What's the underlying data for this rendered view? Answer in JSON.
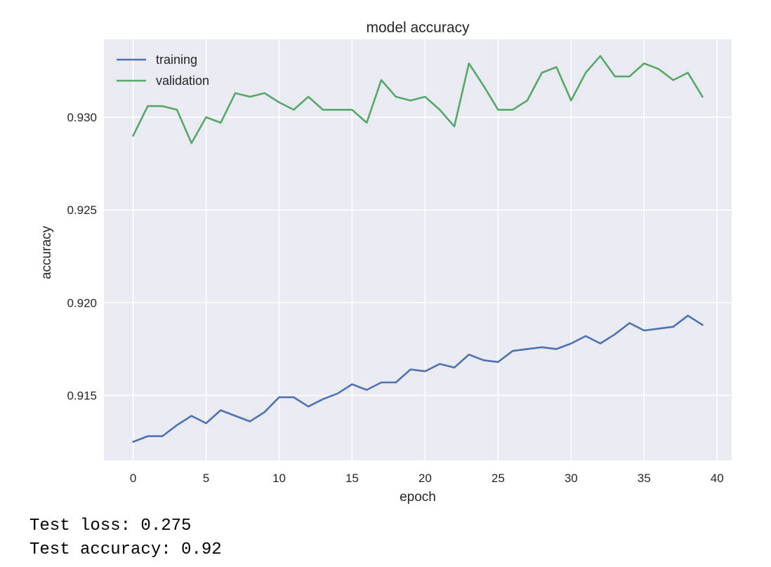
{
  "chart_data": {
    "type": "line",
    "title": "model accuracy",
    "xlabel": "epoch",
    "ylabel": "accuracy",
    "xlim": [
      -2,
      41
    ],
    "ylim": [
      0.9115,
      0.9342
    ],
    "xticks": [
      0,
      5,
      10,
      15,
      20,
      25,
      30,
      35,
      40
    ],
    "xtick_labels": [
      "0",
      "5",
      "10",
      "15",
      "20",
      "25",
      "30",
      "35",
      "40"
    ],
    "yticks": [
      0.915,
      0.92,
      0.925,
      0.93
    ],
    "ytick_labels": [
      "0.915",
      "0.920",
      "0.925",
      "0.930"
    ],
    "grid": true,
    "legend_position": "top-left",
    "style": {
      "background": "#eaeaf2",
      "grid_color": "#ffffff"
    },
    "x": [
      0,
      1,
      2,
      3,
      4,
      5,
      6,
      7,
      8,
      9,
      10,
      11,
      12,
      13,
      14,
      15,
      16,
      17,
      18,
      19,
      20,
      21,
      22,
      23,
      24,
      25,
      26,
      27,
      28,
      29,
      30,
      31,
      32,
      33,
      34,
      35,
      36,
      37,
      38,
      39
    ],
    "series": [
      {
        "name": "training",
        "color": "#4c72b0",
        "values": [
          0.9125,
          0.9128,
          0.9128,
          0.9134,
          0.9139,
          0.9135,
          0.9142,
          0.9139,
          0.9136,
          0.9141,
          0.9149,
          0.9149,
          0.9144,
          0.9148,
          0.9151,
          0.9156,
          0.9153,
          0.9157,
          0.9157,
          0.9164,
          0.9163,
          0.9167,
          0.9165,
          0.9172,
          0.9169,
          0.9168,
          0.9174,
          0.9175,
          0.9176,
          0.9175,
          0.9178,
          0.9182,
          0.9178,
          0.9183,
          0.9189,
          0.9185,
          0.9186,
          0.9187,
          0.9193,
          0.9188
        ]
      },
      {
        "name": "validation",
        "color": "#55a868",
        "values": [
          0.929,
          0.9306,
          0.9306,
          0.9304,
          0.9286,
          0.93,
          0.9297,
          0.9313,
          0.9311,
          0.9313,
          0.9308,
          0.9304,
          0.9311,
          0.9304,
          0.9304,
          0.9304,
          0.9297,
          0.932,
          0.9311,
          0.9309,
          0.9311,
          0.9304,
          0.9295,
          0.9329,
          0.9317,
          0.9304,
          0.9304,
          0.9309,
          0.9324,
          0.9327,
          0.9309,
          0.9324,
          0.9333,
          0.9322,
          0.9322,
          0.9329,
          0.9326,
          0.932,
          0.9324,
          0.9311
        ]
      }
    ]
  },
  "output": {
    "test_loss": "Test loss: 0.275",
    "test_accuracy": "Test accuracy: 0.92"
  }
}
